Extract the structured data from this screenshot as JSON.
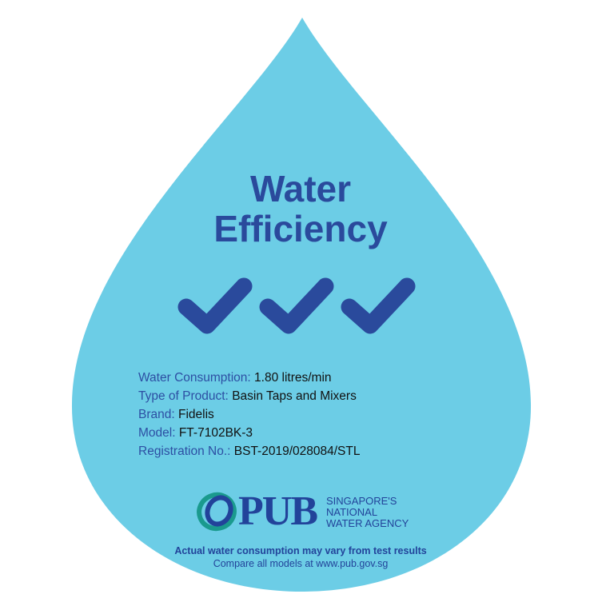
{
  "colors": {
    "drop": "#6ccde6",
    "accent": "#2a4a9c",
    "logo_teal": "#1a9a8e"
  },
  "title": {
    "line1": "Water",
    "line2": "Efficiency"
  },
  "rating": {
    "ticks": 3,
    "max_ticks": 3,
    "icon": "checkmark-icon"
  },
  "info": [
    {
      "label": "Water Consumption:",
      "value": "1.80 litres/min"
    },
    {
      "label": "Type of Product:",
      "value": "Basin Taps and Mixers"
    },
    {
      "label": "Brand:",
      "value": "Fidelis"
    },
    {
      "label": "Model:",
      "value": "FT-7102BK-3"
    },
    {
      "label": "Registration No.:",
      "value": "BST-2019/028084/STL"
    }
  ],
  "logo": {
    "name": "PUB",
    "tagline1": "SINGAPORE'S",
    "tagline2": "NATIONAL",
    "tagline3": "WATER AGENCY"
  },
  "footer": {
    "disclaimer": "Actual water consumption may vary from test results",
    "compare": "Compare all models at www.pub.gov.sg"
  }
}
